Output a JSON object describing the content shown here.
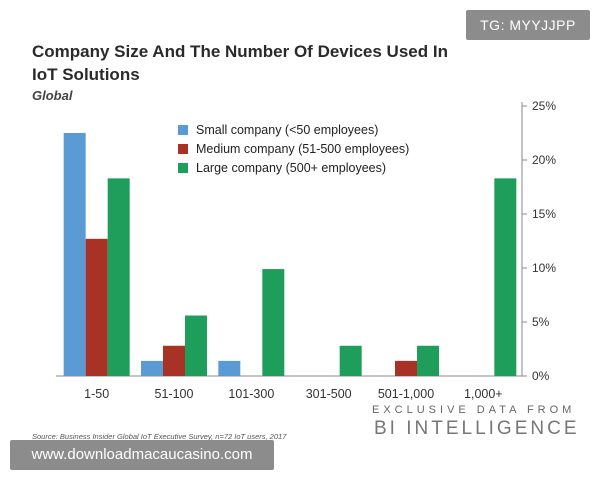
{
  "overlay_tag": "TG: MYYJJPP",
  "chart_data": {
    "type": "bar",
    "title": "Company Size And The Number Of Devices Used In IoT Solutions",
    "subtitle": "Global",
    "xlabel": "",
    "ylabel": "",
    "ylim": [
      0,
      25
    ],
    "y_ticks": [
      "0%",
      "5%",
      "10%",
      "15%",
      "20%",
      "25%"
    ],
    "grid": false,
    "y_axis_side": "right",
    "legend_position": "top-center",
    "categories": [
      "1-50",
      "51-100",
      "101-300",
      "301-500",
      "501-1,000",
      "1,000+"
    ],
    "series": [
      {
        "name": "Small company (<50 employees)",
        "color": "#5b9bd5",
        "values": [
          22.5,
          1.4,
          1.4,
          0,
          0,
          0
        ]
      },
      {
        "name": "Medium company (51-500 employees)",
        "color": "#a93226",
        "values": [
          12.7,
          2.8,
          0,
          0,
          1.4,
          0
        ]
      },
      {
        "name": "Large company (500+ employees)",
        "color": "#1e9e5a",
        "values": [
          18.3,
          5.6,
          9.9,
          2.8,
          2.8,
          18.3
        ]
      }
    ]
  },
  "brand": {
    "line1": "EXCLUSIVE DATA FROM",
    "line2": "BI INTELLIGENCE"
  },
  "source": "Source: Business Insider Global IoT Executive Survey, n=72 IoT users, 2017",
  "watermark": "www.downloadmacaucasino.com"
}
